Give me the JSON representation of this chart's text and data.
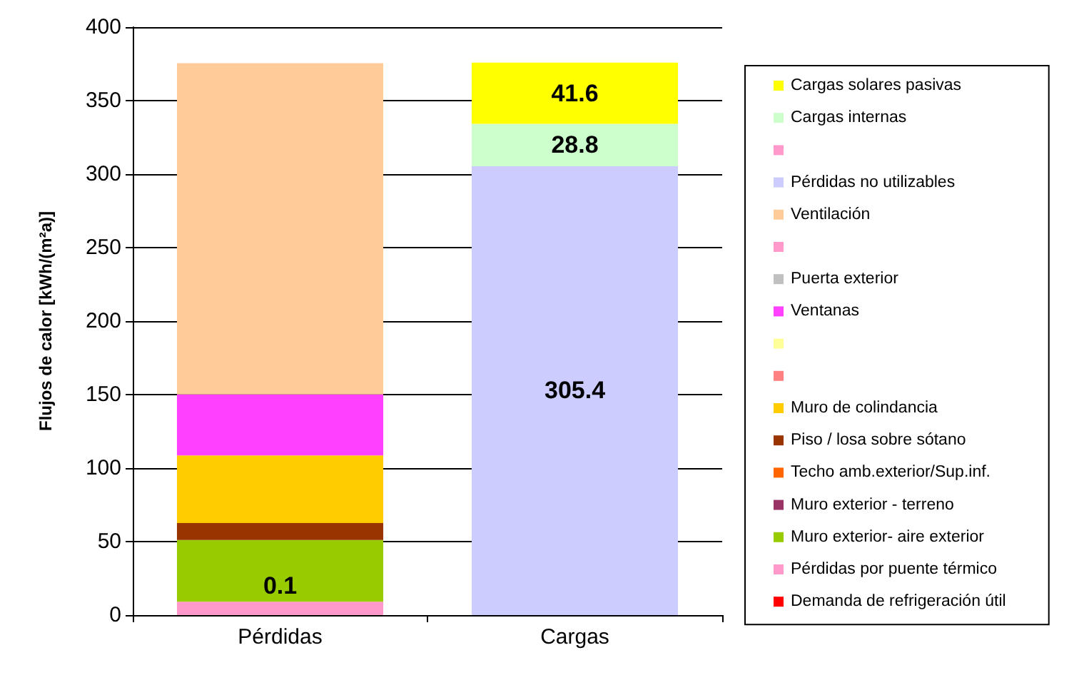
{
  "chart_data": {
    "type": "bar",
    "stacked": true,
    "ylabel": "Flujos de calor [kWh/(m²a)]",
    "categories": [
      "Pérdidas",
      "Cargas"
    ],
    "ylim": [
      0,
      400
    ],
    "yticks": [
      0,
      50,
      100,
      150,
      200,
      250,
      300,
      350,
      400
    ],
    "grid": "y",
    "legend": "right",
    "series": [
      {
        "name": "Demanda de refrigeración útil",
        "color": "#ff0000",
        "values": [
          0.1,
          null
        ],
        "value_labels": [
          "0.1",
          null
        ]
      },
      {
        "name": "Pérdidas por puente térmico",
        "color": "#ff99cc",
        "values": [
          9,
          null
        ]
      },
      {
        "name": "Muro exterior- aire exterior",
        "color": "#99cc00",
        "values": [
          42,
          null
        ]
      },
      {
        "name": "Muro exterior - terreno",
        "color": "#993366",
        "values": [
          0,
          null
        ]
      },
      {
        "name": "Techo amb.exterior/Sup.inf.",
        "color": "#ff6600",
        "values": [
          0,
          null
        ]
      },
      {
        "name": "Piso / losa sobre sótano",
        "color": "#993300",
        "values": [
          11.5,
          null
        ]
      },
      {
        "name": "Muro de colindancia",
        "color": "#ffcc00",
        "values": [
          46,
          null
        ]
      },
      {
        "color": "#ff8080",
        "values": [
          0,
          null
        ]
      },
      {
        "color": "#ffff99",
        "values": [
          0,
          null
        ]
      },
      {
        "name": "Ventanas",
        "color": "#ff40ff",
        "values": [
          41.5,
          null
        ]
      },
      {
        "name": "Puerta exterior",
        "color": "#c0c0c0",
        "values": [
          0,
          null
        ]
      },
      {
        "color": "#ff99cc",
        "values": [
          0,
          null
        ]
      },
      {
        "name": "Ventilación",
        "color": "#ffcc99",
        "values": [
          225.4,
          null
        ]
      },
      {
        "name": "Pérdidas no utilizables",
        "color": "#ccccff",
        "values": [
          null,
          305.4
        ],
        "value_labels": [
          null,
          "305.4"
        ]
      },
      {
        "color": "#ff99cc",
        "values": [
          null,
          0
        ]
      },
      {
        "name": "Cargas internas",
        "color": "#ccffcc",
        "values": [
          null,
          28.8
        ],
        "value_labels": [
          null,
          "28.8"
        ]
      },
      {
        "name": "Cargas solares pasivas",
        "color": "#ffff00",
        "values": [
          null,
          41.6
        ],
        "value_labels": [
          null,
          "41.6"
        ]
      }
    ]
  }
}
